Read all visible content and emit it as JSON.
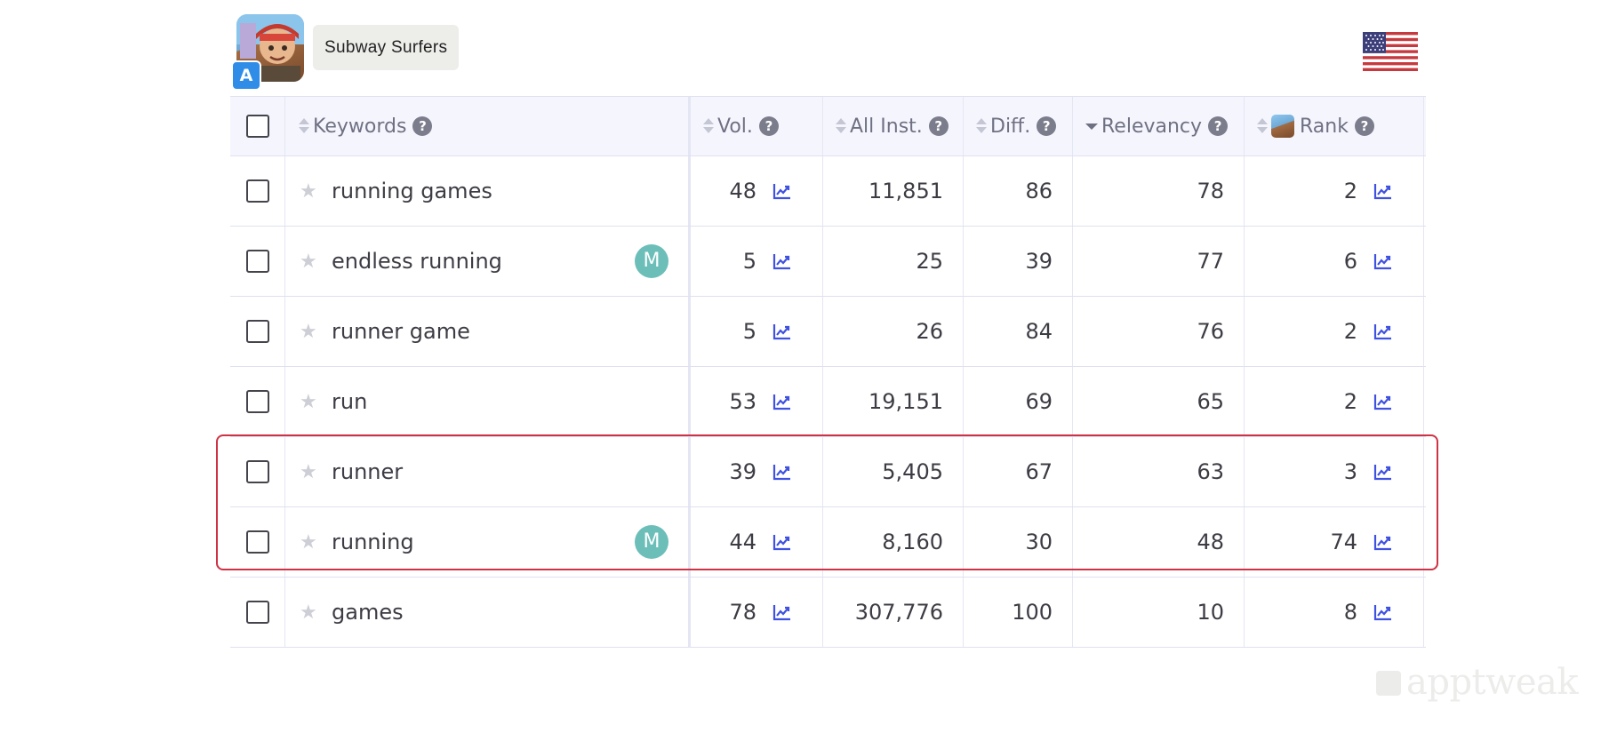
{
  "app": {
    "name": "Subway Surfers",
    "store_badge": "A"
  },
  "table": {
    "headers": {
      "keywords": "Keywords",
      "vol": "Vol.",
      "all_inst": "All Inst.",
      "diff": "Diff.",
      "relevancy": "Relevancy",
      "rank": "Rank",
      "help": "?"
    },
    "rows": [
      {
        "keyword": "running games",
        "badge": "",
        "vol": "48",
        "all_inst": "11,851",
        "diff": "86",
        "relevancy": "78",
        "rank": "2"
      },
      {
        "keyword": "endless running",
        "badge": "M",
        "vol": "5",
        "all_inst": "25",
        "diff": "39",
        "relevancy": "77",
        "rank": "6"
      },
      {
        "keyword": "runner game",
        "badge": "",
        "vol": "5",
        "all_inst": "26",
        "diff": "84",
        "relevancy": "76",
        "rank": "2"
      },
      {
        "keyword": "run",
        "badge": "",
        "vol": "53",
        "all_inst": "19,151",
        "diff": "69",
        "relevancy": "65",
        "rank": "2"
      },
      {
        "keyword": "runner",
        "badge": "",
        "vol": "39",
        "all_inst": "5,405",
        "diff": "67",
        "relevancy": "63",
        "rank": "3"
      },
      {
        "keyword": "running",
        "badge": "M",
        "vol": "44",
        "all_inst": "8,160",
        "diff": "30",
        "relevancy": "48",
        "rank": "74"
      },
      {
        "keyword": "games",
        "badge": "",
        "vol": "78",
        "all_inst": "307,776",
        "diff": "100",
        "relevancy": "10",
        "rank": "8"
      }
    ],
    "highlighted_rows": [
      "runner",
      "running"
    ],
    "sorted_by": "Relevancy",
    "sort_direction": "descending"
  },
  "icons": {
    "star": "★",
    "trend": "trend-chart-icon",
    "flag": "us-flag-icon"
  },
  "colors": {
    "accent": "#3f51e0",
    "highlight_border": "#cf3245",
    "badge_m": "#6cbeb9",
    "header_bg": "#f5f6fd"
  },
  "watermark": "apptweak"
}
